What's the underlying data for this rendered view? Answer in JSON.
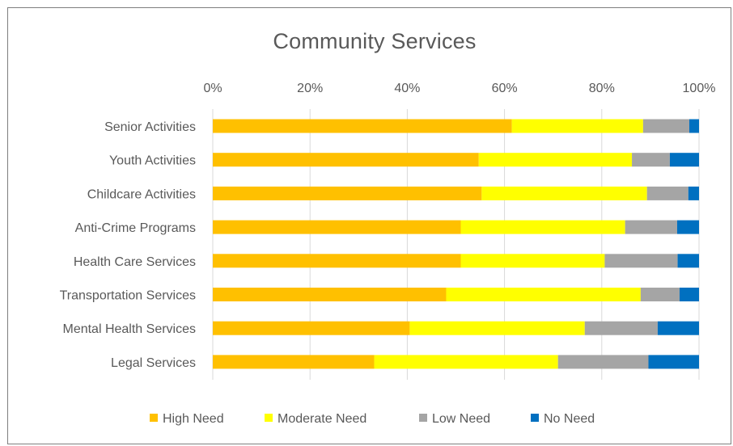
{
  "chart_data": {
    "type": "bar",
    "orientation": "horizontal",
    "stacked": "percent",
    "title": "Community Services",
    "categories": [
      "Senior Activities",
      "Youth Activities",
      "Childcare Activities",
      "Anti-Crime Programs",
      "Health Care Services",
      "Transportation Services",
      "Mental Health Services",
      "Legal Services"
    ],
    "series": [
      {
        "name": "High Need",
        "color": "#FFC000",
        "values": [
          61.5,
          54.7,
          55.3,
          51.0,
          51.0,
          48.0,
          40.5,
          33.2
        ]
      },
      {
        "name": "Moderate Need",
        "color": "#FFFF00",
        "values": [
          27.0,
          31.5,
          34.0,
          33.8,
          29.6,
          40.0,
          36.0,
          37.8
        ]
      },
      {
        "name": "Low Need",
        "color": "#A5A5A5",
        "values": [
          9.5,
          7.8,
          8.5,
          10.7,
          15.0,
          8.0,
          15.0,
          18.6
        ]
      },
      {
        "name": "No Need",
        "color": "#0070C0",
        "values": [
          2.0,
          6.0,
          2.2,
          4.5,
          4.4,
          4.0,
          8.5,
          10.4
        ]
      }
    ],
    "x_ticks": [
      "0%",
      "20%",
      "40%",
      "60%",
      "80%",
      "100%"
    ],
    "xlim": [
      0,
      100
    ],
    "xaxis_position": "top",
    "grid": true,
    "legend_position": "bottom"
  }
}
